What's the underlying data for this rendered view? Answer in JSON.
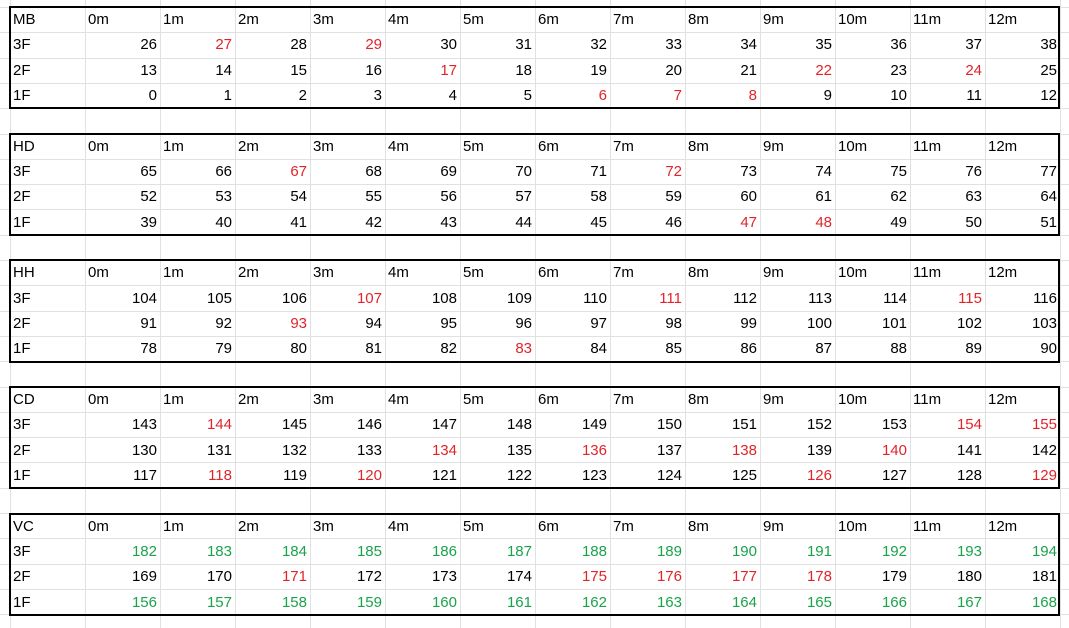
{
  "colors": {
    "default": "#000000",
    "red": "#e0242a",
    "green": "#1aa24b",
    "gridline": "#e1e1e1"
  },
  "sheet": {
    "blocks": [
      {
        "name": "MB",
        "months": [
          "0m",
          "1m",
          "2m",
          "3m",
          "4m",
          "5m",
          "6m",
          "7m",
          "8m",
          "9m",
          "10m",
          "11m",
          "12m"
        ],
        "rows": [
          {
            "label": "3F",
            "values": [
              26,
              27,
              28,
              29,
              30,
              31,
              32,
              33,
              34,
              35,
              36,
              37,
              38
            ],
            "colors": [
              "k",
              "r",
              "k",
              "r",
              "k",
              "k",
              "k",
              "k",
              "k",
              "k",
              "k",
              "k",
              "k"
            ]
          },
          {
            "label": "2F",
            "values": [
              13,
              14,
              15,
              16,
              17,
              18,
              19,
              20,
              21,
              22,
              23,
              24,
              25
            ],
            "colors": [
              "k",
              "k",
              "k",
              "k",
              "r",
              "k",
              "k",
              "k",
              "k",
              "r",
              "k",
              "r",
              "k"
            ]
          },
          {
            "label": "1F",
            "values": [
              0,
              1,
              2,
              3,
              4,
              5,
              6,
              7,
              8,
              9,
              10,
              11,
              12
            ],
            "colors": [
              "k",
              "k",
              "k",
              "k",
              "k",
              "k",
              "r",
              "r",
              "r",
              "k",
              "k",
              "k",
              "k"
            ]
          }
        ]
      },
      {
        "name": "HD",
        "months": [
          "0m",
          "1m",
          "2m",
          "3m",
          "4m",
          "5m",
          "6m",
          "7m",
          "8m",
          "9m",
          "10m",
          "11m",
          "12m"
        ],
        "rows": [
          {
            "label": "3F",
            "values": [
              65,
              66,
              67,
              68,
              69,
              70,
              71,
              72,
              73,
              74,
              75,
              76,
              77
            ],
            "colors": [
              "k",
              "k",
              "r",
              "k",
              "k",
              "k",
              "k",
              "r",
              "k",
              "k",
              "k",
              "k",
              "k"
            ]
          },
          {
            "label": "2F",
            "values": [
              52,
              53,
              54,
              55,
              56,
              57,
              58,
              59,
              60,
              61,
              62,
              63,
              64
            ],
            "colors": [
              "k",
              "k",
              "k",
              "k",
              "k",
              "k",
              "k",
              "k",
              "k",
              "k",
              "k",
              "k",
              "k"
            ]
          },
          {
            "label": "1F",
            "values": [
              39,
              40,
              41,
              42,
              43,
              44,
              45,
              46,
              47,
              48,
              49,
              50,
              51
            ],
            "colors": [
              "k",
              "k",
              "k",
              "k",
              "k",
              "k",
              "k",
              "k",
              "r",
              "r",
              "k",
              "k",
              "k"
            ]
          }
        ]
      },
      {
        "name": "HH",
        "months": [
          "0m",
          "1m",
          "2m",
          "3m",
          "4m",
          "5m",
          "6m",
          "7m",
          "8m",
          "9m",
          "10m",
          "11m",
          "12m"
        ],
        "rows": [
          {
            "label": "3F",
            "values": [
              104,
              105,
              106,
              107,
              108,
              109,
              110,
              111,
              112,
              113,
              114,
              115,
              116
            ],
            "colors": [
              "k",
              "k",
              "k",
              "r",
              "k",
              "k",
              "k",
              "r",
              "k",
              "k",
              "k",
              "r",
              "k"
            ]
          },
          {
            "label": "2F",
            "values": [
              91,
              92,
              93,
              94,
              95,
              96,
              97,
              98,
              99,
              100,
              101,
              102,
              103
            ],
            "colors": [
              "k",
              "k",
              "r",
              "k",
              "k",
              "k",
              "k",
              "k",
              "k",
              "k",
              "k",
              "k",
              "k"
            ]
          },
          {
            "label": "1F",
            "values": [
              78,
              79,
              80,
              81,
              82,
              83,
              84,
              85,
              86,
              87,
              88,
              89,
              90
            ],
            "colors": [
              "k",
              "k",
              "k",
              "k",
              "k",
              "r",
              "k",
              "k",
              "k",
              "k",
              "k",
              "k",
              "k"
            ]
          }
        ]
      },
      {
        "name": "CD",
        "months": [
          "0m",
          "1m",
          "2m",
          "3m",
          "4m",
          "5m",
          "6m",
          "7m",
          "8m",
          "9m",
          "10m",
          "11m",
          "12m"
        ],
        "rows": [
          {
            "label": "3F",
            "values": [
              143,
              144,
              145,
              146,
              147,
              148,
              149,
              150,
              151,
              152,
              153,
              154,
              155
            ],
            "colors": [
              "k",
              "r",
              "k",
              "k",
              "k",
              "k",
              "k",
              "k",
              "k",
              "k",
              "k",
              "r",
              "r"
            ]
          },
          {
            "label": "2F",
            "values": [
              130,
              131,
              132,
              133,
              134,
              135,
              136,
              137,
              138,
              139,
              140,
              141,
              142
            ],
            "colors": [
              "k",
              "k",
              "k",
              "k",
              "r",
              "k",
              "r",
              "k",
              "r",
              "k",
              "r",
              "k",
              "k"
            ]
          },
          {
            "label": "1F",
            "values": [
              117,
              118,
              119,
              120,
              121,
              122,
              123,
              124,
              125,
              126,
              127,
              128,
              129
            ],
            "colors": [
              "k",
              "r",
              "k",
              "r",
              "k",
              "k",
              "k",
              "k",
              "k",
              "r",
              "k",
              "k",
              "r"
            ]
          }
        ]
      },
      {
        "name": "VC",
        "months": [
          "0m",
          "1m",
          "2m",
          "3m",
          "4m",
          "5m",
          "6m",
          "7m",
          "8m",
          "9m",
          "10m",
          "11m",
          "12m"
        ],
        "rows": [
          {
            "label": "3F",
            "values": [
              182,
              183,
              184,
              185,
              186,
              187,
              188,
              189,
              190,
              191,
              192,
              193,
              194
            ],
            "colors": [
              "g",
              "g",
              "g",
              "g",
              "g",
              "g",
              "g",
              "g",
              "g",
              "g",
              "g",
              "g",
              "g"
            ]
          },
          {
            "label": "2F",
            "values": [
              169,
              170,
              171,
              172,
              173,
              174,
              175,
              176,
              177,
              178,
              179,
              180,
              181
            ],
            "colors": [
              "k",
              "k",
              "r",
              "k",
              "k",
              "k",
              "r",
              "r",
              "r",
              "r",
              "k",
              "k",
              "k"
            ]
          },
          {
            "label": "1F",
            "values": [
              156,
              157,
              158,
              159,
              160,
              161,
              162,
              163,
              164,
              165,
              166,
              167,
              168
            ],
            "colors": [
              "g",
              "g",
              "g",
              "g",
              "g",
              "g",
              "g",
              "g",
              "g",
              "g",
              "g",
              "g",
              "g"
            ]
          }
        ]
      }
    ]
  }
}
